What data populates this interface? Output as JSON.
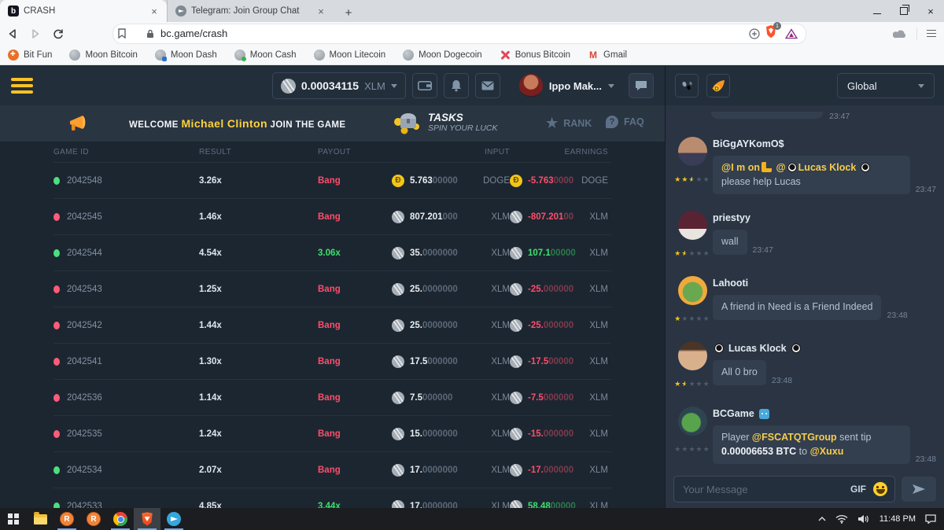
{
  "browser": {
    "tab1": "CRASH",
    "tab2": "Telegram: Join Group Chat",
    "url": "bc.game/crash",
    "shield_badge": "1",
    "bookmarks": [
      "Bit Fun",
      "Moon Bitcoin",
      "Moon Dash",
      "Moon Cash",
      "Moon Litecoin",
      "Moon Dogecoin",
      "Bonus Bitcoin",
      "Gmail"
    ]
  },
  "navbar": {
    "balance": "0.00034115",
    "currency": "XLM",
    "username": "Ippo Mak..."
  },
  "banner": {
    "welcome": "WELCOME",
    "player_name": "Michael Clinton",
    "join": "JOIN THE GAME",
    "tasks_title": "TASKS",
    "tasks_subtitle": "SPIN YOUR LUCK",
    "rank_label": "RANK",
    "faq_label": "FAQ"
  },
  "table": {
    "headers": {
      "game_id": "GAME ID",
      "result": "RESULT",
      "payout": "PAYOUT",
      "input": "INPUT",
      "earnings": "EARNINGS"
    },
    "rows": [
      {
        "dot": "green",
        "id": "2042548",
        "result": "3.26x",
        "payout": "Bang",
        "payout_kind": "bang",
        "coin": "doge",
        "input_main": "5.763",
        "input_dim": "00000",
        "input_cur": "DOGE",
        "earn_main": "-5.763",
        "earn_dim": "0000",
        "earn_cur": "DOGE",
        "earn_kind": "loss"
      },
      {
        "dot": "red",
        "id": "2042545",
        "result": "1.46x",
        "payout": "Bang",
        "payout_kind": "bang",
        "coin": "xlm",
        "input_main": "807.201",
        "input_dim": "000",
        "input_cur": "XLM",
        "earn_main": "-807.201",
        "earn_dim": "00",
        "earn_cur": "XLM",
        "earn_kind": "loss"
      },
      {
        "dot": "green",
        "id": "2042544",
        "result": "4.54x",
        "payout": "3.06x",
        "payout_kind": "win",
        "coin": "xlm",
        "input_main": "35.",
        "input_dim": "0000000",
        "input_cur": "XLM",
        "earn_main": "107.1",
        "earn_dim": "00000",
        "earn_cur": "XLM",
        "earn_kind": "win"
      },
      {
        "dot": "red",
        "id": "2042543",
        "result": "1.25x",
        "payout": "Bang",
        "payout_kind": "bang",
        "coin": "xlm",
        "input_main": "25.",
        "input_dim": "0000000",
        "input_cur": "XLM",
        "earn_main": "-25.",
        "earn_dim": "000000",
        "earn_cur": "XLM",
        "earn_kind": "loss"
      },
      {
        "dot": "red",
        "id": "2042542",
        "result": "1.44x",
        "payout": "Bang",
        "payout_kind": "bang",
        "coin": "xlm",
        "input_main": "25.",
        "input_dim": "0000000",
        "input_cur": "XLM",
        "earn_main": "-25.",
        "earn_dim": "000000",
        "earn_cur": "XLM",
        "earn_kind": "loss"
      },
      {
        "dot": "red",
        "id": "2042541",
        "result": "1.30x",
        "payout": "Bang",
        "payout_kind": "bang",
        "coin": "xlm",
        "input_main": "17.5",
        "input_dim": "000000",
        "input_cur": "XLM",
        "earn_main": "-17.5",
        "earn_dim": "00000",
        "earn_cur": "XLM",
        "earn_kind": "loss"
      },
      {
        "dot": "red",
        "id": "2042536",
        "result": "1.14x",
        "payout": "Bang",
        "payout_kind": "bang",
        "coin": "xlm",
        "input_main": "7.5",
        "input_dim": "000000",
        "input_cur": "XLM",
        "earn_main": "-7.5",
        "earn_dim": "000000",
        "earn_cur": "XLM",
        "earn_kind": "loss"
      },
      {
        "dot": "red",
        "id": "2042535",
        "result": "1.24x",
        "payout": "Bang",
        "payout_kind": "bang",
        "coin": "xlm",
        "input_main": "15.",
        "input_dim": "0000000",
        "input_cur": "XLM",
        "earn_main": "-15.",
        "earn_dim": "000000",
        "earn_cur": "XLM",
        "earn_kind": "loss"
      },
      {
        "dot": "green",
        "id": "2042534",
        "result": "2.07x",
        "payout": "Bang",
        "payout_kind": "bang",
        "coin": "xlm",
        "input_main": "17.",
        "input_dim": "0000000",
        "input_cur": "XLM",
        "earn_main": "-17.",
        "earn_dim": "000000",
        "earn_cur": "XLM",
        "earn_kind": "loss"
      },
      {
        "dot": "green",
        "id": "2042533",
        "result": "4.85x",
        "payout": "3.44x",
        "payout_kind": "win",
        "coin": "xlm",
        "input_main": "17.",
        "input_dim": "0000000",
        "input_cur": "XLM",
        "earn_main": "58.48",
        "earn_dim": "00000",
        "earn_cur": "XLM",
        "earn_kind": "win"
      }
    ]
  },
  "chat": {
    "channel": "Global",
    "partial_time": "23:47",
    "messages": [
      {
        "user": "BiGgAYKomO$",
        "time": "23:47",
        "stars": [
          "full",
          "full",
          "half",
          "empty",
          "empty"
        ],
        "p0": "@I m on",
        "p1": " @",
        "p2": "Lucas Klock",
        "p3": " please help Lucas"
      },
      {
        "user": "priestyy",
        "time": "23:47",
        "stars": [
          "full",
          "half",
          "empty",
          "empty",
          "empty"
        ],
        "text": "wall"
      },
      {
        "user": "Lahooti",
        "time": "23:48",
        "stars": [
          "full",
          "empty",
          "empty",
          "empty",
          "empty"
        ],
        "text": "A friend in Need is a Friend Indeed"
      },
      {
        "user": "Lucas Klock",
        "time": "23:48",
        "stars": [
          "full",
          "half",
          "empty",
          "empty",
          "empty"
        ],
        "text": "All 0 bro"
      },
      {
        "user": "BCGame",
        "time": "23:48",
        "stars": [
          "empty",
          "empty",
          "empty",
          "empty",
          "empty"
        ],
        "p0": "Player ",
        "p1": "@FSCATQTGroup",
        "p2": " sent tip ",
        "p3": "0.00006653 BTC",
        "p4": " to ",
        "p5": "@Xuxu"
      }
    ],
    "input_placeholder": "Your Message",
    "gif_label": "GIF"
  },
  "taskbar": {
    "time": "11:48 PM"
  }
}
